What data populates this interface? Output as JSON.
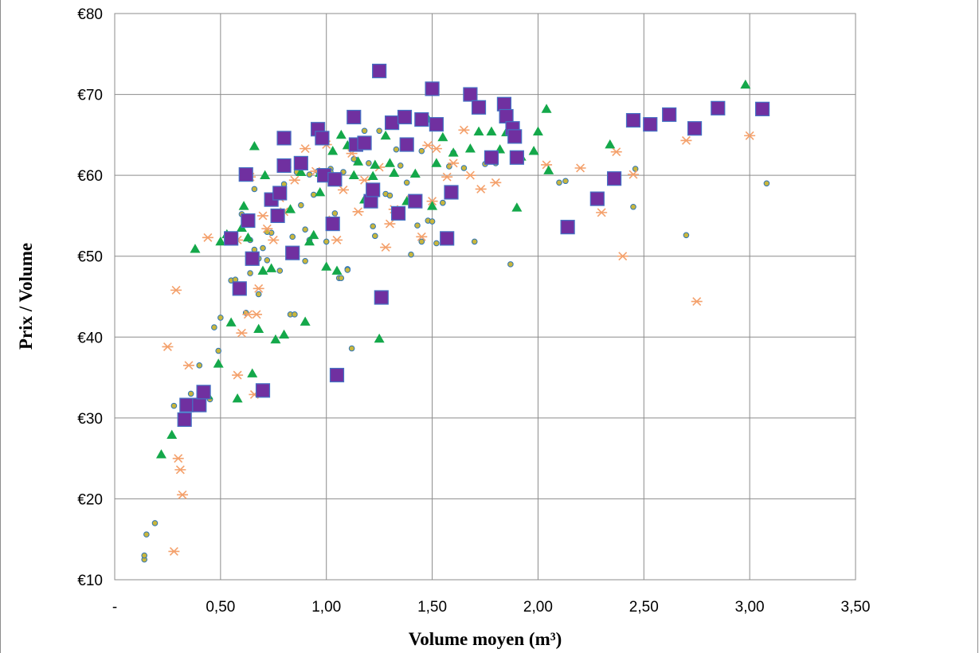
{
  "chart_data": {
    "type": "scatter",
    "title": "",
    "xlabel": "Volume moyen (m³)",
    "ylabel": "Prix / Volume",
    "xlim": [
      0,
      3.5
    ],
    "ylim": [
      10,
      80
    ],
    "grid": true,
    "legend": "none",
    "x_tick_labels": [
      "-",
      "0,50",
      "1,00",
      "1,50",
      "2,00",
      "2,50",
      "3,00",
      "3,50"
    ],
    "y_tick_labels": [
      "€10",
      "€20",
      "€30",
      "€40",
      "€50",
      "€60",
      "€70",
      "€80"
    ],
    "series": [
      {
        "marker": "circle",
        "color": "#c9b63c",
        "edge_color": "#2e75b6",
        "x": [
          0.14,
          0.14,
          0.15,
          0.19,
          0.28,
          0.36,
          0.4,
          0.45,
          0.47,
          0.49,
          0.5,
          0.55,
          0.57,
          0.6,
          0.62,
          0.64,
          0.66,
          0.68,
          0.7,
          0.72,
          0.74,
          0.76,
          0.78,
          0.8,
          0.82,
          0.84,
          0.86,
          0.88,
          0.9,
          0.92,
          0.94,
          0.96,
          0.98,
          1.0,
          1.02,
          1.04,
          1.06,
          1.08,
          1.1,
          1.12,
          1.14,
          1.16,
          1.18,
          1.2,
          1.22,
          1.25,
          1.28,
          1.3,
          1.33,
          1.35,
          1.38,
          1.4,
          1.43,
          1.45,
          1.48,
          1.5,
          1.52,
          1.55,
          1.58,
          1.6,
          1.65,
          1.7,
          1.75,
          1.8,
          1.87,
          1.9,
          2.1,
          2.13,
          2.45,
          2.46,
          2.7,
          3.08,
          0.9,
          1.02,
          1.13,
          0.72,
          0.64,
          0.83,
          1.07,
          1.45,
          1.55,
          0.68,
          0.92,
          1.23,
          1.38,
          0.66,
          1.1,
          0.85
        ],
        "y": [
          12.5,
          13.0,
          15.6,
          17.0,
          31.5,
          33.0,
          36.5,
          32.3,
          41.2,
          38.3,
          42.4,
          47.0,
          47.1,
          55.2,
          43.0,
          52.0,
          58.3,
          45.3,
          51.0,
          49.5,
          52.9,
          54.5,
          48.2,
          58.9,
          61.0,
          52.4,
          60.4,
          56.3,
          53.3,
          60.1,
          57.6,
          60.5,
          60.3,
          51.8,
          60.8,
          55.3,
          47.3,
          60.4,
          48.4,
          38.6,
          61.9,
          63.3,
          65.5,
          61.5,
          53.7,
          65.5,
          57.7,
          57.5,
          63.2,
          61.2,
          56.7,
          50.2,
          53.8,
          51.8,
          54.4,
          54.3,
          51.6,
          56.6,
          61.1,
          62.8,
          60.9,
          51.8,
          61.4,
          61.5,
          49.0,
          65.7,
          59.1,
          59.3,
          56.1,
          60.8,
          52.6,
          59.0,
          49.4,
          60.4,
          62.0,
          53.0,
          47.9,
          42.8,
          47.3,
          63.0,
          56.6,
          49.7,
          52.0,
          52.5,
          59.1,
          50.8,
          48.3,
          42.8
        ]
      },
      {
        "marker": "star",
        "color": "#f4a16c",
        "x": [
          0.25,
          0.28,
          0.3,
          0.31,
          0.32,
          0.29,
          0.35,
          0.44,
          0.58,
          0.6,
          0.63,
          0.64,
          0.67,
          0.68,
          0.72,
          0.75,
          0.78,
          0.8,
          0.85,
          0.9,
          0.95,
          1.0,
          1.03,
          1.05,
          1.08,
          1.12,
          1.18,
          1.22,
          1.28,
          1.32,
          1.4,
          1.45,
          1.5,
          1.52,
          1.57,
          1.6,
          1.65,
          1.68,
          1.73,
          1.8,
          2.04,
          2.2,
          2.3,
          2.37,
          2.4,
          2.45,
          2.7,
          2.75,
          3.0,
          0.66,
          0.7,
          0.58,
          0.62,
          0.8,
          1.15,
          1.3,
          1.25,
          1.48
        ],
        "y": [
          38.8,
          13.5,
          25.0,
          23.6,
          20.5,
          45.8,
          36.5,
          52.3,
          35.3,
          40.5,
          42.8,
          59.8,
          42.8,
          46.0,
          53.4,
          52.0,
          57.2,
          55.5,
          59.4,
          63.3,
          60.5,
          63.8,
          54.5,
          52.0,
          58.2,
          62.7,
          59.4,
          58.5,
          51.1,
          55.8,
          57.0,
          52.4,
          56.8,
          63.3,
          59.8,
          61.5,
          65.6,
          60.0,
          58.3,
          59.1,
          61.3,
          60.9,
          55.4,
          62.9,
          50.0,
          60.1,
          64.3,
          44.4,
          64.9,
          32.9,
          55.0,
          52.0,
          60.1,
          64.5,
          55.5,
          54.0,
          61.0,
          63.7
        ]
      },
      {
        "marker": "triangle",
        "color": "#14a84a",
        "x": [
          0.22,
          0.27,
          0.38,
          0.44,
          0.49,
          0.5,
          0.53,
          0.55,
          0.58,
          0.6,
          0.61,
          0.63,
          0.65,
          0.66,
          0.68,
          0.7,
          0.71,
          0.74,
          0.76,
          0.8,
          0.83,
          0.9,
          0.92,
          0.94,
          0.97,
          1.0,
          1.03,
          1.05,
          1.07,
          1.1,
          1.15,
          1.18,
          1.22,
          1.25,
          1.28,
          1.3,
          1.32,
          1.38,
          1.42,
          1.45,
          1.48,
          1.5,
          1.52,
          1.55,
          1.6,
          1.68,
          1.72,
          1.78,
          1.82,
          1.85,
          1.9,
          1.92,
          1.98,
          2.0,
          2.04,
          2.05,
          2.34,
          2.98,
          1.23,
          0.88,
          1.13,
          0.97
        ],
        "y": [
          25.5,
          27.9,
          50.9,
          32.8,
          36.7,
          51.8,
          52.7,
          41.8,
          32.4,
          53.5,
          56.2,
          52.3,
          35.5,
          63.6,
          41.0,
          48.2,
          60.0,
          48.5,
          39.7,
          40.3,
          55.8,
          41.9,
          51.8,
          52.6,
          57.9,
          48.7,
          63.0,
          48.2,
          65.0,
          63.7,
          61.7,
          57.0,
          59.9,
          39.8,
          64.9,
          61.5,
          60.3,
          56.8,
          60.2,
          66.9,
          67.0,
          56.2,
          61.5,
          64.7,
          62.8,
          63.3,
          65.4,
          65.4,
          63.2,
          65.3,
          56.0,
          62.3,
          63.0,
          65.4,
          68.2,
          60.6,
          63.8,
          71.2,
          61.3,
          60.4,
          60.0,
          60.3
        ]
      },
      {
        "marker": "square",
        "color": "#7030a0",
        "edge_color": "#4472c4",
        "x": [
          0.33,
          0.34,
          0.4,
          0.42,
          0.55,
          0.59,
          0.62,
          0.63,
          0.65,
          0.7,
          0.74,
          0.77,
          0.78,
          0.8,
          0.8,
          0.84,
          0.88,
          0.96,
          0.98,
          0.99,
          1.03,
          1.04,
          1.05,
          1.13,
          1.14,
          1.18,
          1.21,
          1.22,
          1.25,
          1.26,
          1.31,
          1.34,
          1.37,
          1.38,
          1.42,
          1.45,
          1.5,
          1.52,
          1.57,
          1.59,
          1.68,
          1.72,
          1.78,
          1.84,
          1.85,
          1.88,
          1.89,
          1.9,
          2.14,
          2.28,
          2.36,
          2.45,
          2.53,
          2.62,
          2.74,
          2.85,
          3.06
        ],
        "y": [
          29.8,
          31.6,
          31.6,
          33.2,
          52.2,
          46.0,
          60.1,
          54.4,
          49.7,
          33.4,
          57.0,
          55.0,
          57.8,
          61.2,
          64.6,
          50.4,
          61.5,
          65.7,
          64.6,
          60.0,
          54.0,
          59.5,
          35.3,
          67.2,
          63.8,
          64.0,
          56.8,
          58.2,
          72.9,
          44.9,
          66.5,
          55.3,
          67.2,
          63.8,
          56.8,
          66.9,
          70.7,
          66.3,
          52.2,
          57.9,
          70.0,
          68.4,
          62.2,
          68.8,
          67.3,
          65.8,
          64.8,
          62.2,
          53.6,
          57.1,
          59.6,
          66.8,
          66.3,
          67.5,
          65.8,
          68.3,
          68.2
        ]
      }
    ]
  }
}
